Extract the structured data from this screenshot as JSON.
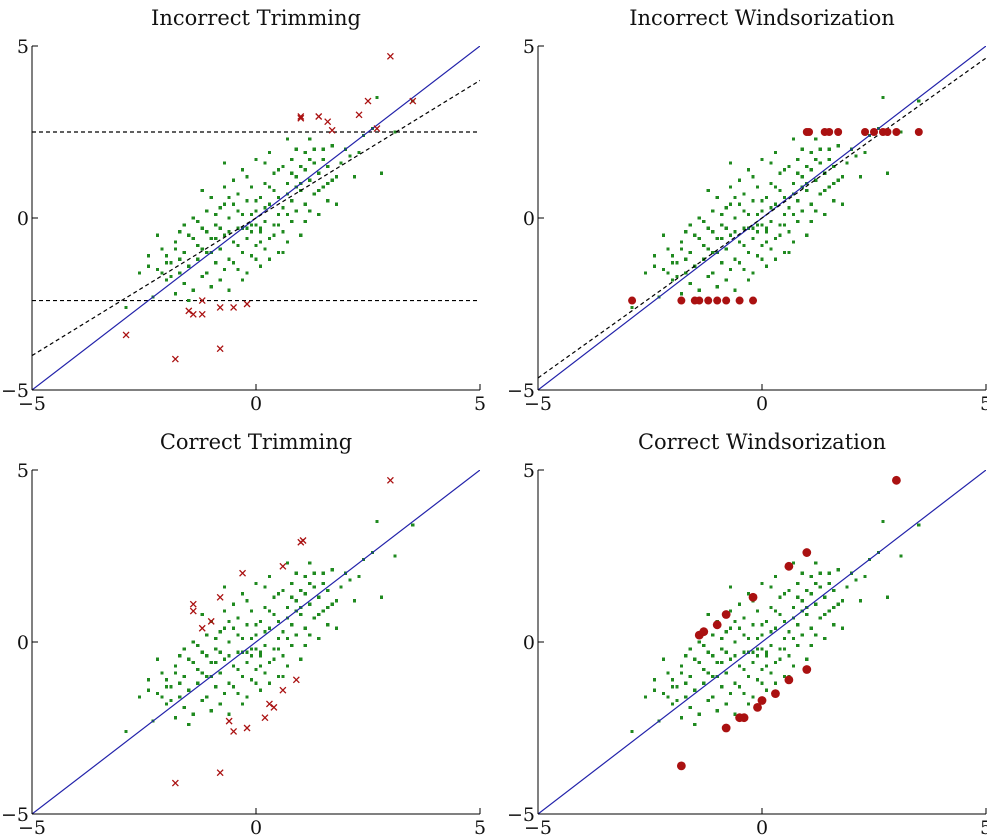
{
  "colors": {
    "inlier": "#1f8a1f",
    "outlier": "#aa1111",
    "true_line": "#2222aa",
    "fit_line": "#000000"
  },
  "chart_data": [
    {
      "type": "scatter",
      "title": "Incorrect Trimming",
      "xlim": [
        -5,
        5
      ],
      "ylim": [
        -5,
        5
      ],
      "xticks": [
        -5,
        0,
        5
      ],
      "yticks": [
        -5,
        0,
        5
      ],
      "grid": false,
      "outlier_marker": "x",
      "thresholds_y": [
        -2.4,
        2.5
      ],
      "lines": [
        {
          "style": "solid",
          "color": "true_line",
          "slope": 1.0,
          "intercept": 0.0
        },
        {
          "style": "dashed",
          "color": "fit_line",
          "slope": 0.8,
          "intercept": 0.0
        }
      ],
      "outliers": [
        [
          -2.9,
          -3.4
        ],
        [
          -1.8,
          -4.1
        ],
        [
          -0.8,
          -3.8
        ],
        [
          -1.4,
          -2.8
        ],
        [
          -1.2,
          -2.8
        ],
        [
          -1.5,
          -2.7
        ],
        [
          -1.2,
          -2.4
        ],
        [
          -0.8,
          -2.6
        ],
        [
          -0.5,
          -2.6
        ],
        [
          -0.2,
          -2.5
        ],
        [
          1.0,
          2.9
        ],
        [
          1.0,
          2.95
        ],
        [
          1.4,
          2.95
        ],
        [
          1.6,
          2.8
        ],
        [
          1.7,
          2.55
        ],
        [
          2.3,
          3.0
        ],
        [
          2.5,
          3.4
        ],
        [
          2.7,
          2.6
        ],
        [
          3.0,
          4.7
        ],
        [
          3.5,
          3.4
        ]
      ]
    },
    {
      "type": "scatter",
      "title": "Incorrect Windsorization",
      "xlim": [
        -5,
        5
      ],
      "ylim": [
        -5,
        5
      ],
      "xticks": [
        -5,
        0,
        5
      ],
      "yticks": [
        -5,
        0,
        5
      ],
      "grid": false,
      "outlier_marker": "dot",
      "lines": [
        {
          "style": "solid",
          "color": "true_line",
          "slope": 1.0,
          "intercept": 0.0
        },
        {
          "style": "dashed",
          "color": "fit_line",
          "slope": 0.93,
          "intercept": 0.0
        }
      ],
      "outliers": [
        [
          -2.9,
          -2.4
        ],
        [
          -1.8,
          -2.4
        ],
        [
          -1.4,
          -2.4
        ],
        [
          -1.2,
          -2.4
        ],
        [
          -1.5,
          -2.4
        ],
        [
          -1.0,
          -2.4
        ],
        [
          -0.8,
          -2.4
        ],
        [
          -0.5,
          -2.4
        ],
        [
          -0.2,
          -2.4
        ],
        [
          1.0,
          2.5
        ],
        [
          1.05,
          2.5
        ],
        [
          1.4,
          2.5
        ],
        [
          1.5,
          2.5
        ],
        [
          1.7,
          2.5
        ],
        [
          2.3,
          2.5
        ],
        [
          2.5,
          2.5
        ],
        [
          2.7,
          2.5
        ],
        [
          2.8,
          2.5
        ],
        [
          3.0,
          2.5
        ],
        [
          3.5,
          2.5
        ]
      ]
    },
    {
      "type": "scatter",
      "title": "Correct Trimming",
      "xlim": [
        -5,
        5
      ],
      "ylim": [
        -5,
        5
      ],
      "xticks": [
        -5,
        0,
        5
      ],
      "yticks": [
        -5,
        0,
        5
      ],
      "grid": false,
      "outlier_marker": "x",
      "lines": [
        {
          "style": "solid",
          "color": "true_line",
          "slope": 1.0,
          "intercept": 0.0
        }
      ],
      "outliers": [
        [
          -1.8,
          -4.1
        ],
        [
          -0.8,
          -3.8
        ],
        [
          -0.5,
          -2.6
        ],
        [
          -0.2,
          -2.5
        ],
        [
          -0.6,
          -2.3
        ],
        [
          0.2,
          -2.2
        ],
        [
          0.3,
          -1.8
        ],
        [
          0.4,
          -1.9
        ],
        [
          0.6,
          -1.4
        ],
        [
          0.9,
          -1.1
        ],
        [
          -1.4,
          1.1
        ],
        [
          -1.4,
          0.9
        ],
        [
          -1.2,
          0.4
        ],
        [
          -1.0,
          0.6
        ],
        [
          -0.8,
          1.3
        ],
        [
          -0.3,
          2.0
        ],
        [
          0.6,
          2.2
        ],
        [
          1.0,
          2.9
        ],
        [
          1.05,
          2.95
        ],
        [
          3.0,
          4.7
        ]
      ]
    },
    {
      "type": "scatter",
      "title": "Correct Windsorization",
      "xlim": [
        -5,
        5
      ],
      "ylim": [
        -5,
        5
      ],
      "xticks": [
        -5,
        0,
        5
      ],
      "yticks": [
        -5,
        0,
        5
      ],
      "grid": false,
      "outlier_marker": "dot",
      "lines": [
        {
          "style": "solid",
          "color": "true_line",
          "slope": 1.0,
          "intercept": 0.0
        }
      ],
      "outliers": [
        [
          -1.8,
          -3.6
        ],
        [
          -0.8,
          -2.5
        ],
        [
          -0.5,
          -2.2
        ],
        [
          -0.4,
          -2.2
        ],
        [
          -0.1,
          -1.9
        ],
        [
          0.0,
          -1.7
        ],
        [
          0.3,
          -1.5
        ],
        [
          0.6,
          -1.1
        ],
        [
          1.0,
          -0.8
        ],
        [
          -1.4,
          0.2
        ],
        [
          -1.3,
          0.3
        ],
        [
          -1.0,
          0.5
        ],
        [
          -0.8,
          0.8
        ],
        [
          -0.2,
          1.3
        ],
        [
          0.6,
          2.2
        ],
        [
          1.0,
          2.6
        ],
        [
          3.0,
          4.7
        ]
      ]
    }
  ],
  "inliers": [
    [
      -2.9,
      -2.6
    ],
    [
      -2.4,
      -1.4
    ],
    [
      -2.3,
      -2.3
    ],
    [
      -2.2,
      -1.5
    ],
    [
      -2.1,
      -0.9
    ],
    [
      -2.0,
      -1.8
    ],
    [
      -2.0,
      -1.1
    ],
    [
      -1.9,
      -1.3
    ],
    [
      -1.8,
      -0.7
    ],
    [
      -1.8,
      -2.2
    ],
    [
      -1.7,
      -1.6
    ],
    [
      -1.7,
      -0.4
    ],
    [
      -1.6,
      -1.0
    ],
    [
      -1.6,
      -1.9
    ],
    [
      -1.5,
      -0.5
    ],
    [
      -1.5,
      -1.4
    ],
    [
      -1.4,
      0.0
    ],
    [
      -1.4,
      -2.1
    ],
    [
      -1.3,
      -1.2
    ],
    [
      -1.3,
      -0.8
    ],
    [
      -1.2,
      -0.3
    ],
    [
      -1.2,
      -1.7
    ],
    [
      -1.1,
      0.2
    ],
    [
      -1.1,
      -1.0
    ],
    [
      -1.0,
      -0.6
    ],
    [
      -1.0,
      -2.0
    ],
    [
      -1.0,
      0.6
    ],
    [
      -0.9,
      -1.3
    ],
    [
      -0.9,
      -0.2
    ],
    [
      -0.8,
      0.3
    ],
    [
      -0.8,
      -0.9
    ],
    [
      -0.8,
      -1.8
    ],
    [
      -0.7,
      0.9
    ],
    [
      -0.7,
      -0.5
    ],
    [
      -0.7,
      1.6
    ],
    [
      -0.6,
      -1.2
    ],
    [
      -0.6,
      0.0
    ],
    [
      -0.6,
      -2.1
    ],
    [
      -0.5,
      0.4
    ],
    [
      -0.5,
      -0.7
    ],
    [
      -0.5,
      1.1
    ],
    [
      -0.4,
      -1.5
    ],
    [
      -0.4,
      -0.3
    ],
    [
      -0.4,
      0.7
    ],
    [
      -0.3,
      0.1
    ],
    [
      -0.3,
      -1.0
    ],
    [
      -0.3,
      1.4
    ],
    [
      -0.3,
      -0.3
    ],
    [
      -0.2,
      -0.6
    ],
    [
      -0.2,
      0.5
    ],
    [
      -0.2,
      -1.6
    ],
    [
      -0.2,
      -0.3
    ],
    [
      -0.1,
      0.9
    ],
    [
      -0.1,
      -0.2
    ],
    [
      -0.1,
      -1.1
    ],
    [
      -0.1,
      -0.4
    ],
    [
      0.0,
      0.2
    ],
    [
      0.0,
      -0.8
    ],
    [
      0.0,
      1.7
    ],
    [
      0.0,
      -0.2
    ],
    [
      0.1,
      -0.4
    ],
    [
      0.1,
      0.6
    ],
    [
      0.1,
      -1.4
    ],
    [
      0.1,
      -0.3
    ],
    [
      0.2,
      1.0
    ],
    [
      0.2,
      -0.1
    ],
    [
      0.2,
      -0.9
    ],
    [
      0.3,
      0.4
    ],
    [
      0.3,
      1.9
    ],
    [
      0.3,
      -0.6
    ],
    [
      0.4,
      0.8
    ],
    [
      0.4,
      -0.2
    ],
    [
      0.4,
      1.3
    ],
    [
      0.5,
      0.1
    ],
    [
      0.5,
      -1.0
    ],
    [
      0.5,
      0.6
    ],
    [
      0.6,
      1.5
    ],
    [
      0.6,
      -0.4
    ],
    [
      0.6,
      0.3
    ],
    [
      0.7,
      1.0
    ],
    [
      0.7,
      -0.7
    ],
    [
      0.7,
      2.3
    ],
    [
      0.8,
      0.5
    ],
    [
      0.8,
      1.7
    ],
    [
      0.8,
      -0.1
    ],
    [
      0.9,
      1.2
    ],
    [
      0.9,
      0.2
    ],
    [
      0.9,
      2.0
    ],
    [
      1.0,
      0.8
    ],
    [
      1.0,
      -0.5
    ],
    [
      1.0,
      1.5
    ],
    [
      1.1,
      1.9
    ],
    [
      1.1,
      0.4
    ],
    [
      1.2,
      1.1
    ],
    [
      1.2,
      2.3
    ],
    [
      1.3,
      0.7
    ],
    [
      1.3,
      1.6
    ],
    [
      1.4,
      1.3
    ],
    [
      1.4,
      0.1
    ],
    [
      1.5,
      2.0
    ],
    [
      1.5,
      0.9
    ],
    [
      1.6,
      1.5
    ],
    [
      1.7,
      1.1
    ],
    [
      1.8,
      0.4
    ],
    [
      1.9,
      1.6
    ],
    [
      2.0,
      2.0
    ],
    [
      2.2,
      1.2
    ],
    [
      2.4,
      2.4
    ],
    [
      2.6,
      2.6
    ],
    [
      2.7,
      3.5
    ],
    [
      2.8,
      1.3
    ],
    [
      3.1,
      2.5
    ],
    [
      -2.6,
      -1.6
    ],
    [
      -2.2,
      -0.5
    ],
    [
      -1.9,
      -1.7
    ],
    [
      -1.4,
      -0.6
    ],
    [
      -1.1,
      -1.6
    ],
    [
      -0.9,
      -0.6
    ],
    [
      -0.6,
      0.6
    ],
    [
      -0.4,
      -0.8
    ],
    [
      0.0,
      0.5
    ],
    [
      0.2,
      0.3
    ],
    [
      0.4,
      -0.5
    ],
    [
      0.7,
      0.7
    ],
    [
      1.1,
      -0.1
    ],
    [
      1.3,
      2.0
    ],
    [
      1.6,
      0.5
    ],
    [
      2.1,
      1.8
    ],
    [
      -1.7,
      -1.2
    ],
    [
      -1.2,
      0.8
    ],
    [
      -0.7,
      -1.5
    ],
    [
      -0.2,
      1.2
    ],
    [
      0.3,
      -1.2
    ],
    [
      0.8,
      1.3
    ],
    [
      1.2,
      0.2
    ],
    [
      1.8,
      1.2
    ],
    [
      -2.4,
      -1.1
    ],
    [
      -1.5,
      -2.4
    ],
    [
      -1.1,
      -0.4
    ],
    [
      -0.6,
      -0.4
    ],
    [
      -0.1,
      0.1
    ],
    [
      0.5,
      1.4
    ],
    [
      1.0,
      1.0
    ],
    [
      1.5,
      1.7
    ],
    [
      -1.3,
      -0.1
    ],
    [
      -0.8,
      -0.3
    ],
    [
      -0.3,
      -1.8
    ],
    [
      0.2,
      1.6
    ],
    [
      0.7,
      0.1
    ],
    [
      1.4,
      0.8
    ],
    [
      -2.0,
      -1.3
    ],
    [
      -1.6,
      -0.2
    ],
    [
      -0.9,
      0.1
    ],
    [
      -0.5,
      -1.3
    ],
    [
      0.1,
      -0.7
    ],
    [
      0.6,
      -1.0
    ],
    [
      1.1,
      1.4
    ],
    [
      1.7,
      2.1
    ],
    [
      -2.1,
      -1.6
    ],
    [
      -1.0,
      -1.0
    ],
    [
      -0.4,
      0.2
    ],
    [
      0.3,
      0.9
    ],
    [
      0.9,
      0.9
    ],
    [
      1.6,
      1.0
    ],
    [
      2.3,
      1.9
    ],
    [
      -1.8,
      -0.9
    ],
    [
      -1.2,
      -0.9
    ],
    [
      -0.7,
      0.4
    ],
    [
      0.0,
      -1.2
    ],
    [
      0.5,
      -0.2
    ],
    [
      1.2,
      1.7
    ],
    [
      3.5,
      3.4
    ]
  ],
  "tick_text": {
    "neg5": "−5",
    "zero": "0",
    "pos5": "5"
  }
}
